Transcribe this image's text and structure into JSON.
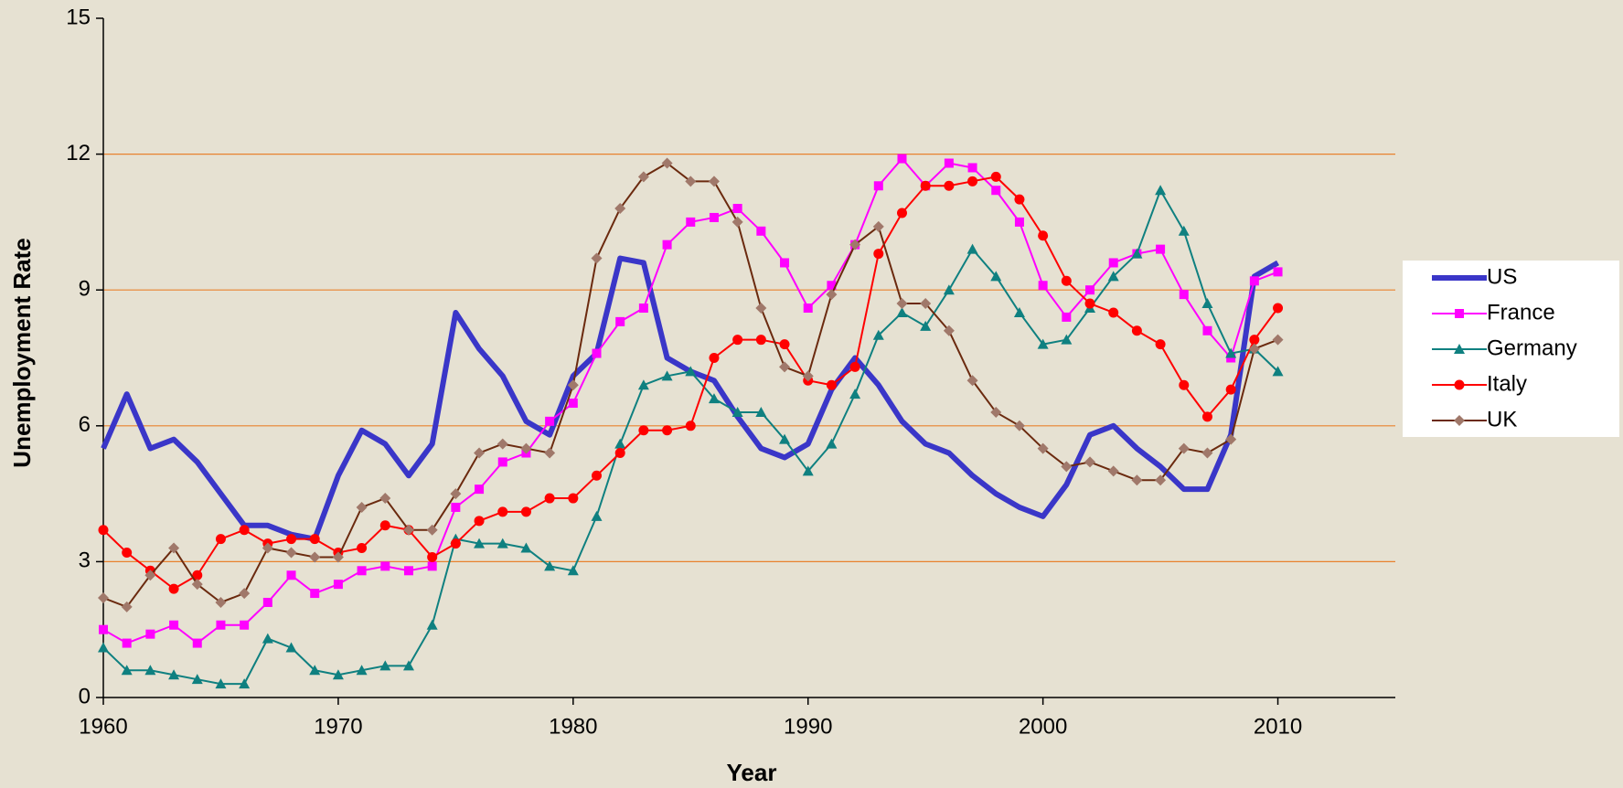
{
  "chart_data": {
    "type": "line",
    "x_label": "Year",
    "y_label": "Unemployment Rate",
    "x": [
      1960,
      1961,
      1962,
      1963,
      1964,
      1965,
      1966,
      1967,
      1968,
      1969,
      1970,
      1971,
      1972,
      1973,
      1974,
      1975,
      1976,
      1977,
      1978,
      1979,
      1980,
      1981,
      1982,
      1983,
      1984,
      1985,
      1986,
      1987,
      1988,
      1989,
      1990,
      1991,
      1992,
      1993,
      1994,
      1995,
      1996,
      1997,
      1998,
      1999,
      2000,
      2001,
      2002,
      2003,
      2004,
      2005,
      2006,
      2007,
      2008,
      2009,
      2010
    ],
    "xlim": [
      1960,
      2015
    ],
    "xticks": [
      1960,
      1970,
      1980,
      1990,
      2000,
      2010
    ],
    "ylim": [
      0,
      15
    ],
    "yticks": [
      0,
      3,
      6,
      9,
      12,
      15
    ],
    "grid": true,
    "legend": "right",
    "series": [
      {
        "name": "US",
        "color": "#3a36c8",
        "marker": "none",
        "line_width": 6,
        "values": [
          5.5,
          6.7,
          5.5,
          5.7,
          5.2,
          4.5,
          3.8,
          3.8,
          3.6,
          3.5,
          4.9,
          5.9,
          5.6,
          4.9,
          5.6,
          8.5,
          7.7,
          7.1,
          6.1,
          5.8,
          7.1,
          7.6,
          9.7,
          9.6,
          7.5,
          7.2,
          7.0,
          6.2,
          5.5,
          5.3,
          5.6,
          6.8,
          7.5,
          6.9,
          6.1,
          5.6,
          5.4,
          4.9,
          4.5,
          4.2,
          4.0,
          4.7,
          5.8,
          6.0,
          5.5,
          5.1,
          4.6,
          4.6,
          5.8,
          9.3,
          9.6
        ]
      },
      {
        "name": "France",
        "color": "#ff00ff",
        "marker": "square",
        "line_width": 2,
        "values": [
          1.5,
          1.2,
          1.4,
          1.6,
          1.2,
          1.6,
          1.6,
          2.1,
          2.7,
          2.3,
          2.5,
          2.8,
          2.9,
          2.8,
          2.9,
          4.2,
          4.6,
          5.2,
          5.4,
          6.1,
          6.5,
          7.6,
          8.3,
          8.6,
          10.0,
          10.5,
          10.6,
          10.8,
          10.3,
          9.6,
          8.6,
          9.1,
          10.0,
          11.3,
          11.9,
          11.3,
          11.8,
          11.7,
          11.2,
          10.5,
          9.1,
          8.4,
          9.0,
          9.6,
          9.8,
          9.9,
          8.9,
          8.1,
          7.5,
          9.2,
          9.4
        ]
      },
      {
        "name": "Germany",
        "color": "#0f8080",
        "marker": "triangle",
        "line_width": 2,
        "values": [
          1.1,
          0.6,
          0.6,
          0.5,
          0.4,
          0.3,
          0.3,
          1.3,
          1.1,
          0.6,
          0.5,
          0.6,
          0.7,
          0.7,
          1.6,
          3.5,
          3.4,
          3.4,
          3.3,
          2.9,
          2.8,
          4.0,
          5.6,
          6.9,
          7.1,
          7.2,
          6.6,
          6.3,
          6.3,
          5.7,
          5.0,
          5.6,
          6.7,
          8.0,
          8.5,
          8.2,
          9.0,
          9.9,
          9.3,
          8.5,
          7.8,
          7.9,
          8.6,
          9.3,
          9.8,
          11.2,
          10.3,
          8.7,
          7.6,
          7.7,
          7.2
        ]
      },
      {
        "name": "Italy",
        "color": "#ff0000",
        "marker": "circle",
        "line_width": 2,
        "values": [
          3.7,
          3.2,
          2.8,
          2.4,
          2.7,
          3.5,
          3.7,
          3.4,
          3.5,
          3.5,
          3.2,
          3.3,
          3.8,
          3.7,
          3.1,
          3.4,
          3.9,
          4.1,
          4.1,
          4.4,
          4.4,
          4.9,
          5.4,
          5.9,
          5.9,
          6.0,
          7.5,
          7.9,
          7.9,
          7.8,
          7.0,
          6.9,
          7.3,
          9.8,
          10.7,
          11.3,
          11.3,
          11.4,
          11.5,
          11.0,
          10.2,
          9.2,
          8.7,
          8.5,
          8.1,
          7.8,
          6.9,
          6.2,
          6.8,
          7.9,
          8.6
        ]
      },
      {
        "name": "UK",
        "color": "#6b2a0f",
        "marker_color": "#a0786a",
        "marker": "diamond",
        "line_width": 2,
        "values": [
          2.2,
          2.0,
          2.7,
          3.3,
          2.5,
          2.1,
          2.3,
          3.3,
          3.2,
          3.1,
          3.1,
          4.2,
          4.4,
          3.7,
          3.7,
          4.5,
          5.4,
          5.6,
          5.5,
          5.4,
          6.9,
          9.7,
          10.8,
          11.5,
          11.8,
          11.4,
          11.4,
          10.5,
          8.6,
          7.3,
          7.1,
          8.9,
          10.0,
          10.4,
          8.7,
          8.7,
          8.1,
          7.0,
          6.3,
          6.0,
          5.5,
          5.1,
          5.2,
          5.0,
          4.8,
          4.8,
          5.5,
          5.4,
          5.7,
          7.7,
          7.9
        ]
      }
    ]
  }
}
